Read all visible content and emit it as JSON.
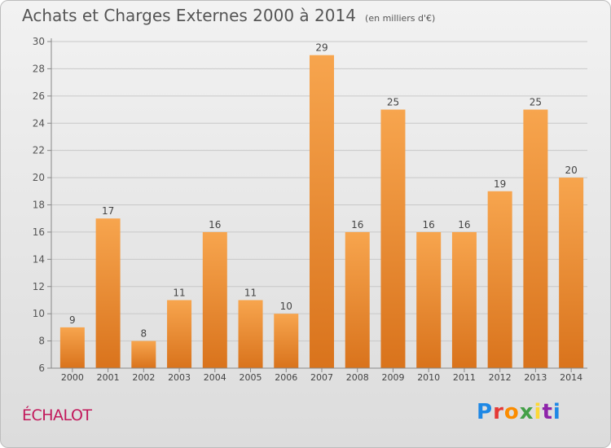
{
  "title": "Achats et Charges Externes 2000 à 2014",
  "unit_note": "(en milliers d'€)",
  "commune": "ÉCHALOT",
  "logo": {
    "text": "Proxiti",
    "letters": [
      {
        "ch": "P",
        "color": "#1e88e5"
      },
      {
        "ch": "r",
        "color": "#e53935"
      },
      {
        "ch": "o",
        "color": "#fb8c00"
      },
      {
        "ch": "x",
        "color": "#43a047"
      },
      {
        "ch": "i",
        "color": "#fdd835"
      },
      {
        "ch": "t",
        "color": "#8e24aa"
      },
      {
        "ch": "i",
        "color": "#1e88e5"
      }
    ]
  },
  "chart_data": {
    "type": "bar",
    "categories": [
      "2000",
      "2001",
      "2002",
      "2003",
      "2004",
      "2005",
      "2006",
      "2007",
      "2008",
      "2009",
      "2010",
      "2011",
      "2012",
      "2013",
      "2014"
    ],
    "values": [
      9,
      17,
      8,
      11,
      16,
      11,
      10,
      29,
      16,
      25,
      16,
      16,
      19,
      25,
      20
    ],
    "ylim": [
      6,
      30
    ],
    "yticks": [
      6,
      8,
      10,
      12,
      14,
      16,
      18,
      20,
      22,
      24,
      26,
      28,
      30
    ],
    "grid": true,
    "bar_color_top": "#f7a54e",
    "bar_color_bottom": "#d9731c"
  }
}
